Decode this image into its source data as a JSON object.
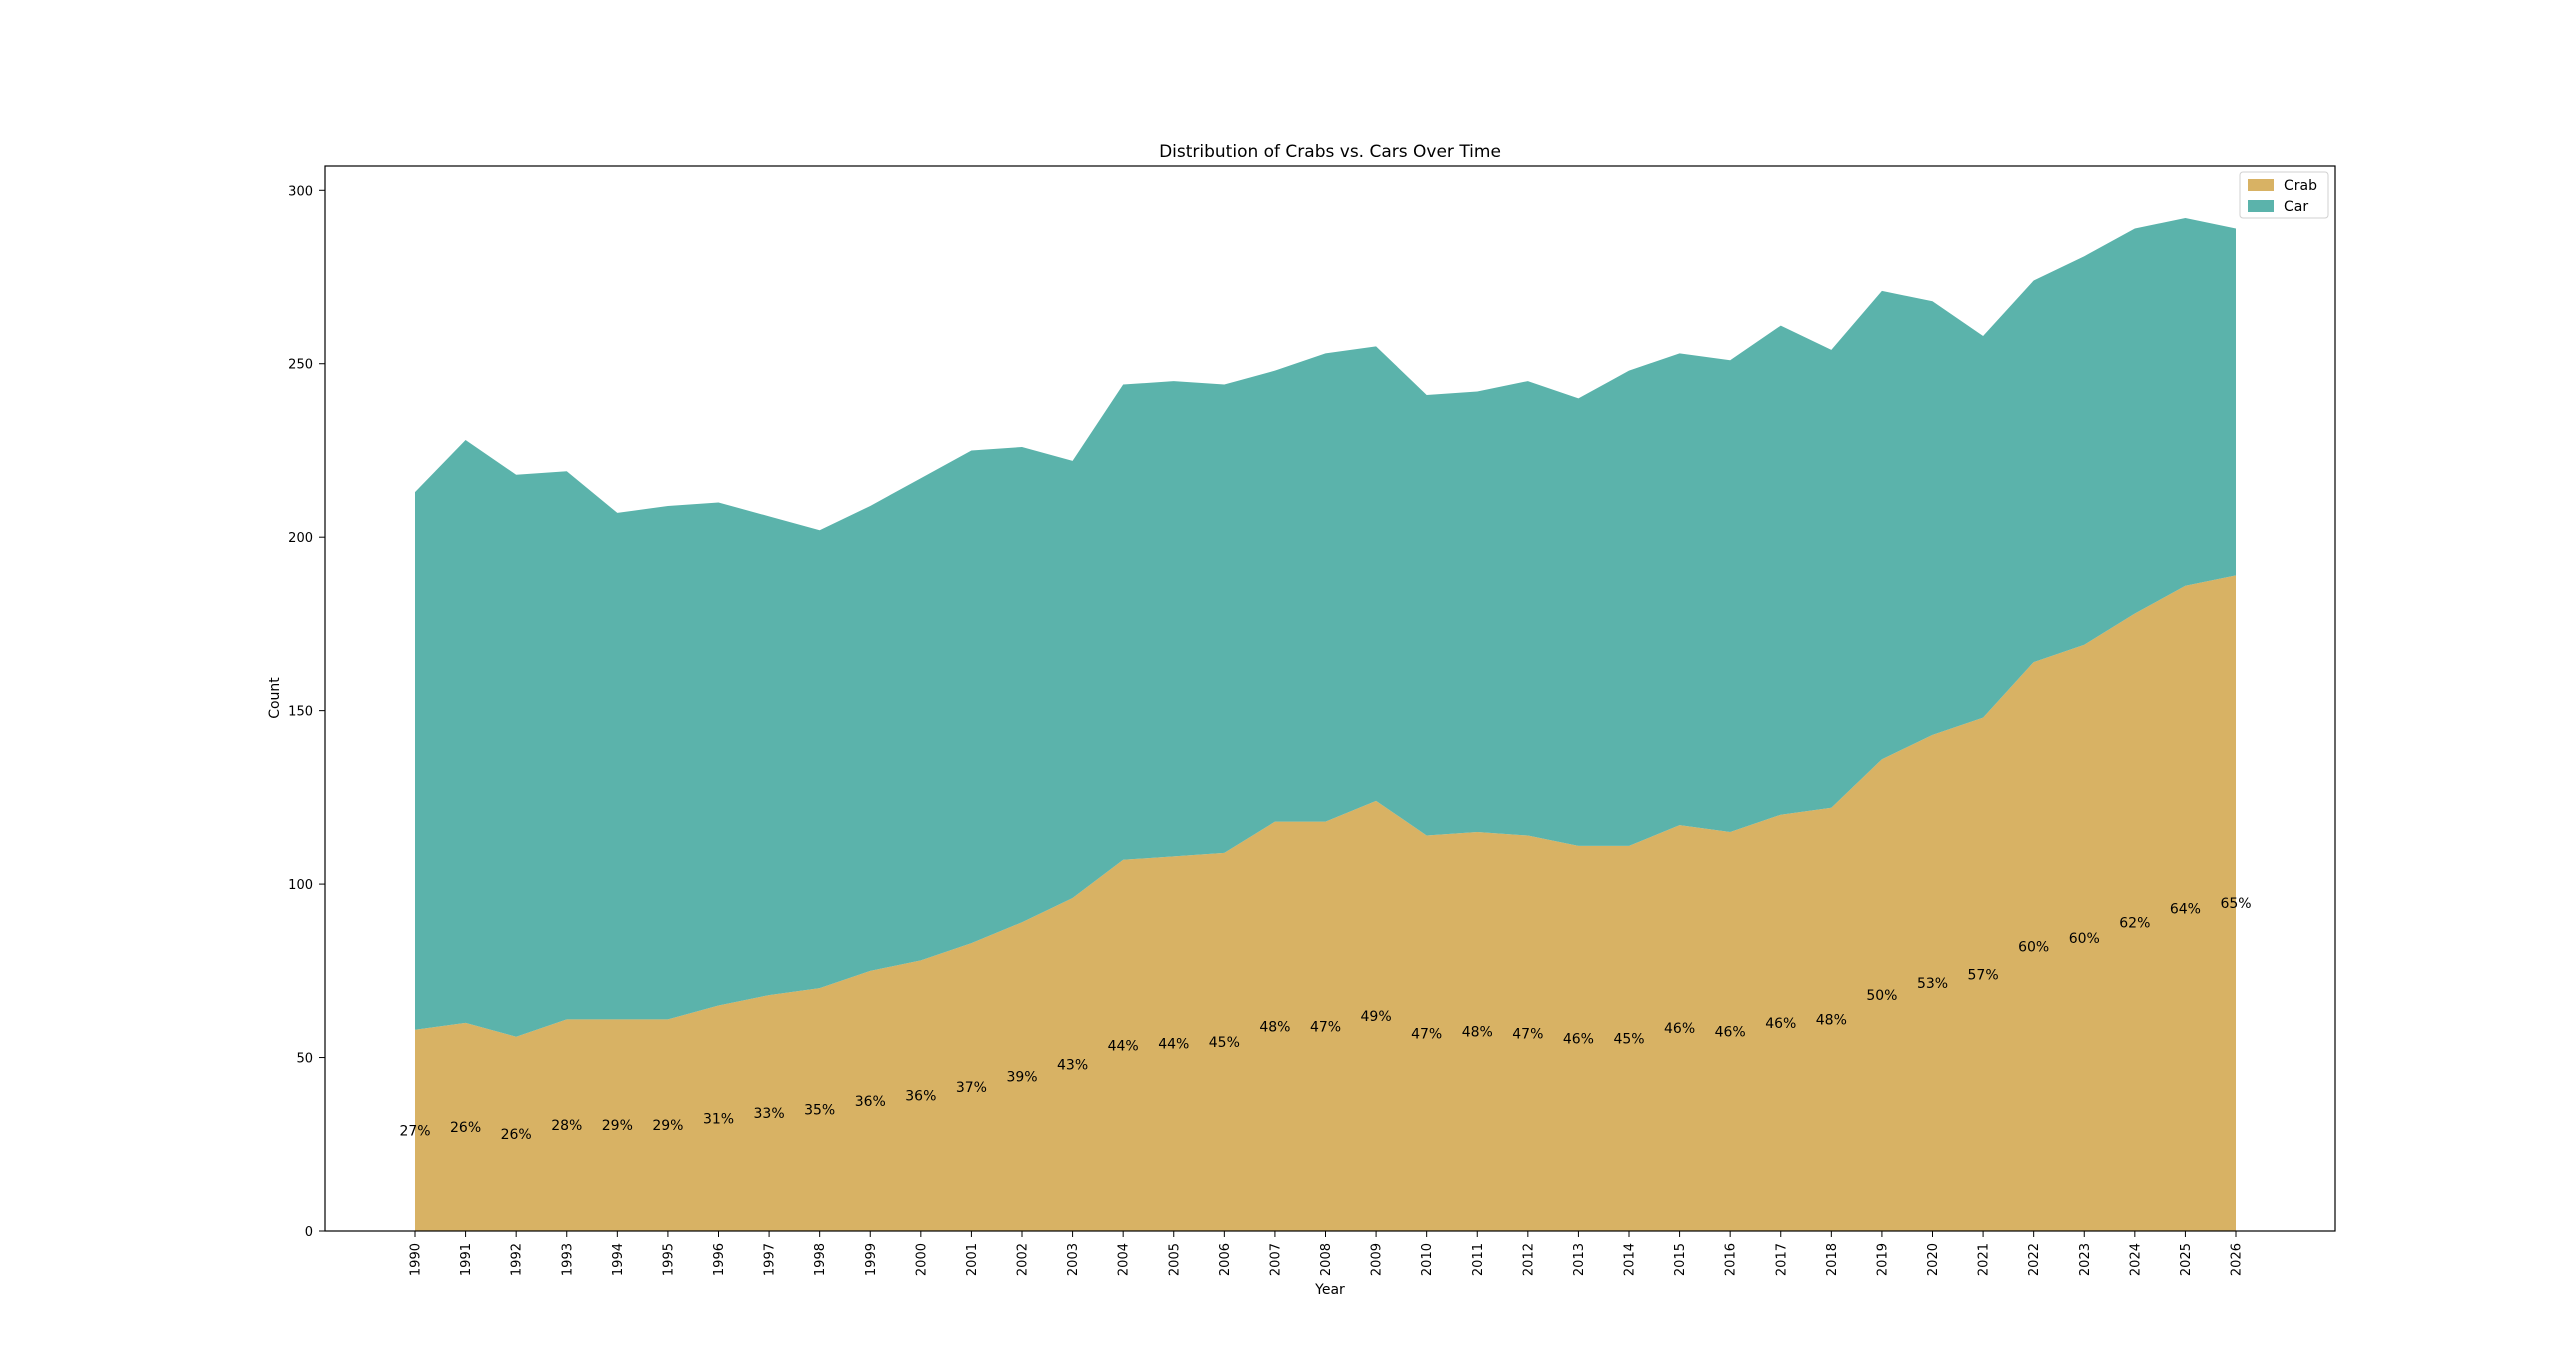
{
  "chart_data": {
    "type": "area",
    "stacked": true,
    "title": "Distribution of Crabs vs. Cars Over Time",
    "xlabel": "Year",
    "ylabel": "Count",
    "ylim": [
      0,
      307
    ],
    "yticks": [
      0,
      50,
      100,
      150,
      200,
      250,
      300
    ],
    "categories": [
      "1990",
      "1991",
      "1992",
      "1993",
      "1994",
      "1995",
      "1996",
      "1997",
      "1998",
      "1999",
      "2000",
      "2001",
      "2002",
      "2003",
      "2004",
      "2005",
      "2006",
      "2007",
      "2008",
      "2009",
      "2010",
      "2011",
      "2012",
      "2013",
      "2014",
      "2015",
      "2016",
      "2017",
      "2018",
      "2019",
      "2020",
      "2021",
      "2022",
      "2023",
      "2024",
      "2025",
      "2026"
    ],
    "series": [
      {
        "name": "Crab",
        "color": "#d8b264",
        "values": [
          58,
          60,
          56,
          61,
          61,
          61,
          65,
          68,
          70,
          75,
          78,
          83,
          89,
          96,
          107,
          108,
          109,
          118,
          118,
          124,
          114,
          115,
          114,
          111,
          111,
          117,
          115,
          120,
          122,
          136,
          143,
          148,
          164,
          169,
          178,
          186,
          189
        ]
      },
      {
        "name": "Car",
        "color": "#5bb3ab",
        "values": [
          155,
          168,
          162,
          158,
          146,
          148,
          145,
          138,
          132,
          134,
          139,
          142,
          137,
          126,
          137,
          137,
          135,
          130,
          135,
          131,
          127,
          127,
          131,
          129,
          137,
          136,
          136,
          141,
          132,
          135,
          125,
          110,
          110,
          112,
          111,
          106,
          100
        ]
      }
    ],
    "percent_labels": [
      "27%",
      "26%",
      "26%",
      "28%",
      "29%",
      "29%",
      "31%",
      "33%",
      "35%",
      "36%",
      "36%",
      "37%",
      "39%",
      "43%",
      "44%",
      "44%",
      "45%",
      "48%",
      "47%",
      "49%",
      "47%",
      "48%",
      "47%",
      "46%",
      "45%",
      "46%",
      "46%",
      "46%",
      "48%",
      "50%",
      "53%",
      "57%",
      "60%",
      "60%",
      "62%",
      "64%",
      "65%"
    ],
    "legend": {
      "position": "top-right",
      "entries": [
        "Crab",
        "Car"
      ]
    }
  }
}
